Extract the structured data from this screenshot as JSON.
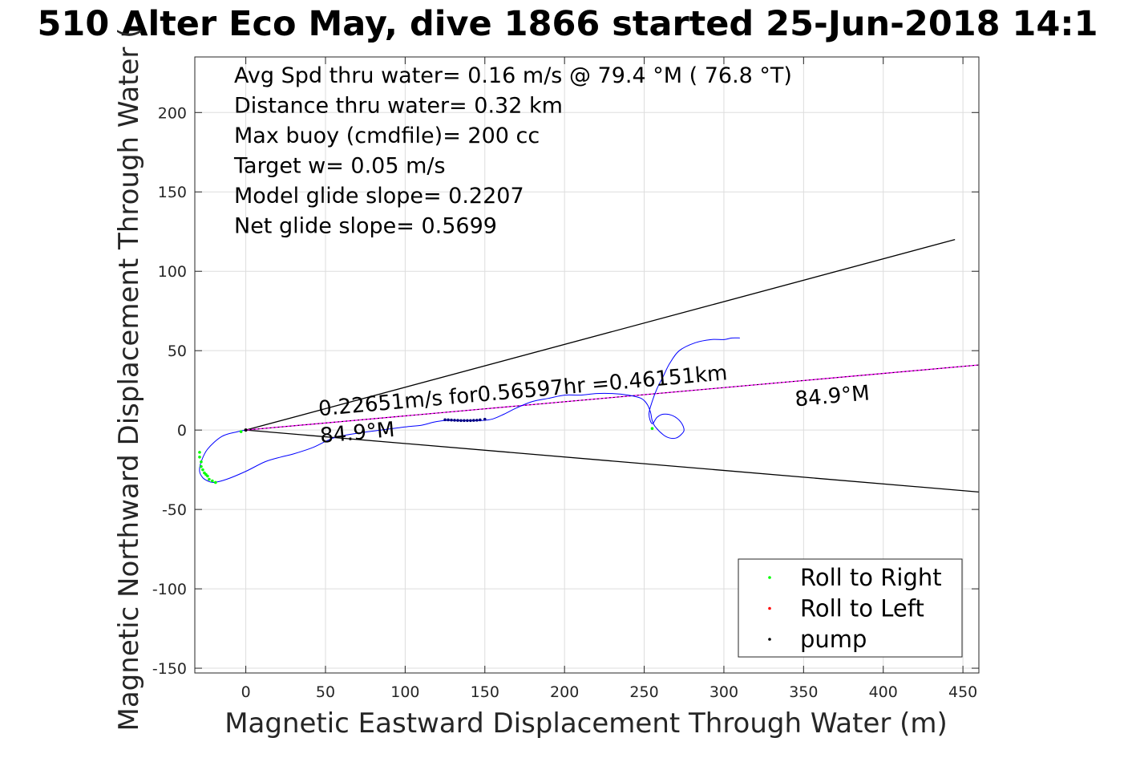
{
  "chart_data": {
    "type": "line",
    "title": "510 Alter Eco May, dive 1866 started 25-Jun-2018 14:1",
    "xlabel": "Magnetic Eastward Displacement Through Water (m)",
    "ylabel": "Magnetic Northward Displacement Through Water (",
    "xlim": [
      -32,
      460
    ],
    "ylim": [
      -153,
      235
    ],
    "xticks": [
      0,
      50,
      100,
      150,
      200,
      250,
      300,
      350,
      400,
      450
    ],
    "yticks": [
      -150,
      -100,
      -50,
      0,
      50,
      100,
      150,
      200
    ],
    "grid": true,
    "colors": {
      "track": "#0000ff",
      "cone": "#000000",
      "heading": "#ff00ff",
      "roll_right": "#00ff00",
      "roll_left": "#ff0000",
      "pump": "#000080"
    },
    "info_lines": [
      "Avg Spd thru water=  0.16 m/s @  79.4 °M ( 76.8 °T)",
      "Distance thru water=  0.32 km",
      "Max buoy (cmdfile)= 200 cc",
      "Target w= 0.05 m/s",
      "Model glide slope= 0.2207",
      "Net glide slope= 0.5699"
    ],
    "annotations": {
      "speed_text": "0.22651m/s for0.56597hr =0.46151km",
      "heading_label_near": "84.9°M",
      "heading_label_far": "84.9°M"
    },
    "legend": {
      "placement": "bottom-right",
      "entries": [
        {
          "label": "Roll to Right",
          "color": "#00ff00"
        },
        {
          "label": "Roll to Left",
          "color": "#ff0000"
        },
        {
          "label": "pump",
          "color": "#000000"
        }
      ]
    },
    "series": [
      {
        "type": "line",
        "x": [
          0,
          -5,
          -15,
          -24,
          -28,
          -29,
          -27,
          -24,
          -20,
          -12,
          0,
          12,
          22,
          30,
          42,
          55,
          70,
          85,
          100,
          110,
          118,
          125,
          132,
          140,
          148,
          155,
          162,
          170,
          180,
          190,
          200,
          210,
          220,
          230,
          240,
          248,
          252,
          254,
          255,
          257,
          262,
          266,
          270,
          273,
          275,
          273,
          268,
          262,
          258,
          255,
          253,
          255,
          258,
          262,
          266,
          272,
          282,
          292,
          300,
          305,
          310
        ],
        "y": [
          0,
          -1,
          -4,
          -12,
          -20,
          -26,
          -30,
          -32,
          -33,
          -31,
          -26,
          -20,
          -17,
          -15,
          -11,
          -5,
          -2,
          0,
          2,
          3,
          5,
          6,
          6,
          6,
          6,
          7,
          10,
          14,
          18,
          20,
          22,
          22,
          23,
          23,
          22,
          20,
          16,
          11,
          6,
          2,
          -3,
          -5,
          -5,
          -3,
          0,
          5,
          9,
          10,
          8,
          4,
          10,
          18,
          26,
          34,
          42,
          50,
          55,
          57,
          57,
          58,
          58
        ]
      },
      {
        "type": "cone",
        "origin": [
          0,
          0
        ],
        "upper_end": [
          445,
          120
        ],
        "lower_end": [
          460,
          -39
        ]
      },
      {
        "type": "heading",
        "origin": [
          0,
          0
        ],
        "end": [
          460,
          41
        ]
      },
      {
        "type": "roll_right",
        "x": [
          -29,
          -29,
          -28,
          -28,
          -27,
          -26,
          -25,
          -24,
          -23,
          -21,
          -19,
          -3,
          255
        ],
        "y": [
          -14,
          -17,
          -20,
          -23,
          -25,
          -27,
          -28,
          -29,
          -31,
          -32,
          -33,
          -1,
          1
        ]
      },
      {
        "type": "pump",
        "x": [
          125,
          127,
          129,
          131,
          133,
          135,
          137,
          139,
          141,
          143,
          145,
          147,
          150
        ],
        "y": [
          6.5,
          6.4,
          6.3,
          6.2,
          6.1,
          6.0,
          6.0,
          6.0,
          6.0,
          6.1,
          6.2,
          6.4,
          6.8
        ]
      }
    ]
  }
}
